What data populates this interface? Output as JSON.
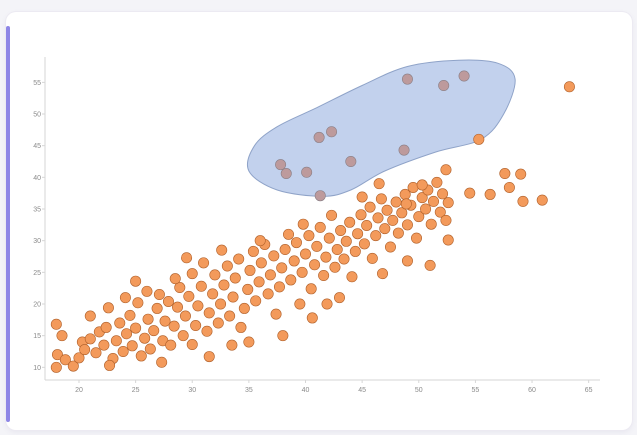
{
  "colors": {
    "point": "#f39a5b",
    "selected_point": "#bd9a9c",
    "lasso_fill": "#b7c9ea",
    "accent": "#8e86e6"
  },
  "chart_data": {
    "type": "scatter",
    "title": "",
    "xlabel": "",
    "ylabel": "",
    "xlim": [
      17,
      66
    ],
    "ylim": [
      8,
      59
    ],
    "grid": false,
    "x_ticks": [
      "20",
      "25",
      "30",
      "35",
      "40",
      "45",
      "50",
      "55",
      "60",
      "65"
    ],
    "y_ticks": [
      "10",
      "15",
      "20",
      "25",
      "30",
      "35",
      "40",
      "45",
      "50",
      "55"
    ],
    "selection_region": {
      "shape": "lasso",
      "polygon": [
        [
          37.5,
          38
        ],
        [
          41.5,
          37
        ],
        [
          44,
          38
        ],
        [
          47,
          41
        ],
        [
          51.5,
          44
        ],
        [
          55.5,
          46
        ],
        [
          57.5,
          50
        ],
        [
          58.5,
          55.5
        ],
        [
          57,
          58
        ],
        [
          53.5,
          58.5
        ],
        [
          49,
          57.5
        ],
        [
          45,
          54.5
        ],
        [
          41,
          51
        ],
        [
          37.5,
          48
        ],
        [
          35.5,
          45
        ],
        [
          35,
          41
        ]
      ],
      "points": [
        [
          37.8,
          42
        ],
        [
          38.3,
          40.6
        ],
        [
          40.1,
          40.8
        ],
        [
          41.2,
          46.3
        ],
        [
          42.3,
          47.2
        ],
        [
          41.3,
          37.1
        ],
        [
          44.0,
          42.5
        ],
        [
          48.7,
          44.3
        ],
        [
          49.0,
          55.5
        ],
        [
          52.2,
          54.5
        ],
        [
          54.0,
          56.0
        ]
      ]
    },
    "outliers": [
      [
        55.3,
        46.0
      ],
      [
        63.3,
        54.3
      ],
      [
        56.3,
        37.3
      ],
      [
        57.6,
        40.6
      ],
      [
        58.0,
        38.4
      ],
      [
        59.0,
        40.5
      ],
      [
        59.2,
        36.2
      ],
      [
        60.9,
        36.4
      ],
      [
        52.6,
        30.1
      ],
      [
        51.0,
        26.1
      ],
      [
        54.5,
        37.5
      ],
      [
        50.3,
        38.8
      ],
      [
        52.4,
        41.2
      ],
      [
        48.9,
        35.8
      ],
      [
        46.5,
        39.0
      ]
    ],
    "trend_points": [
      [
        18.0,
        10.0
      ],
      [
        18.0,
        16.8
      ],
      [
        18.1,
        12.0
      ],
      [
        18.5,
        15.0
      ],
      [
        18.8,
        11.2
      ],
      [
        19.5,
        10.2
      ],
      [
        20.0,
        11.5
      ],
      [
        20.3,
        14.0
      ],
      [
        20.5,
        12.8
      ],
      [
        21.0,
        14.5
      ],
      [
        21.0,
        18.1
      ],
      [
        21.5,
        12.3
      ],
      [
        21.8,
        15.6
      ],
      [
        22.2,
        13.5
      ],
      [
        22.4,
        16.3
      ],
      [
        22.6,
        19.4
      ],
      [
        23.0,
        11.4
      ],
      [
        23.3,
        14.2
      ],
      [
        23.6,
        17.0
      ],
      [
        23.9,
        12.5
      ],
      [
        24.2,
        15.3
      ],
      [
        24.5,
        18.2
      ],
      [
        24.7,
        13.4
      ],
      [
        25.0,
        16.2
      ],
      [
        25.2,
        20.2
      ],
      [
        25.5,
        11.8
      ],
      [
        25.8,
        14.6
      ],
      [
        26.1,
        17.6
      ],
      [
        26.3,
        12.9
      ],
      [
        26.6,
        15.8
      ],
      [
        26.9,
        19.3
      ],
      [
        27.1,
        21.5
      ],
      [
        27.4,
        14.2
      ],
      [
        27.6,
        17.3
      ],
      [
        27.9,
        20.4
      ],
      [
        28.1,
        13.5
      ],
      [
        28.4,
        16.5
      ],
      [
        28.7,
        19.5
      ],
      [
        28.9,
        22.6
      ],
      [
        29.2,
        15.0
      ],
      [
        29.4,
        18.1
      ],
      [
        29.7,
        21.2
      ],
      [
        30.0,
        24.8
      ],
      [
        30.0,
        13.6
      ],
      [
        30.3,
        16.6
      ],
      [
        30.5,
        19.7
      ],
      [
        30.8,
        22.8
      ],
      [
        31.0,
        26.5
      ],
      [
        31.3,
        15.7
      ],
      [
        31.5,
        18.6
      ],
      [
        31.8,
        21.6
      ],
      [
        32.0,
        24.6
      ],
      [
        32.3,
        17.0
      ],
      [
        32.5,
        20.0
      ],
      [
        32.8,
        23.0
      ],
      [
        33.1,
        26.0
      ],
      [
        33.3,
        18.1
      ],
      [
        33.6,
        21.1
      ],
      [
        33.8,
        24.1
      ],
      [
        34.1,
        27.1
      ],
      [
        34.3,
        16.3
      ],
      [
        34.6,
        19.3
      ],
      [
        34.9,
        22.3
      ],
      [
        35.1,
        25.3
      ],
      [
        35.4,
        28.3
      ],
      [
        35.6,
        20.5
      ],
      [
        35.9,
        23.5
      ],
      [
        36.1,
        26.5
      ],
      [
        36.4,
        29.4
      ],
      [
        36.7,
        21.6
      ],
      [
        36.9,
        24.6
      ],
      [
        37.2,
        27.6
      ],
      [
        37.4,
        18.4
      ],
      [
        37.7,
        22.7
      ],
      [
        37.9,
        25.7
      ],
      [
        38.2,
        28.6
      ],
      [
        38.5,
        31.0
      ],
      [
        38.7,
        23.8
      ],
      [
        39.0,
        26.8
      ],
      [
        39.2,
        29.7
      ],
      [
        39.5,
        20.0
      ],
      [
        39.7,
        25.0
      ],
      [
        40.0,
        27.9
      ],
      [
        40.3,
        30.8
      ],
      [
        40.5,
        22.4
      ],
      [
        40.8,
        26.2
      ],
      [
        41.0,
        29.1
      ],
      [
        41.3,
        32.1
      ],
      [
        41.6,
        24.5
      ],
      [
        41.8,
        27.4
      ],
      [
        42.1,
        30.4
      ],
      [
        42.3,
        34.0
      ],
      [
        42.6,
        25.8
      ],
      [
        42.8,
        28.6
      ],
      [
        43.1,
        31.6
      ],
      [
        43.4,
        27.1
      ],
      [
        43.6,
        29.9
      ],
      [
        43.9,
        32.9
      ],
      [
        44.1,
        24.3
      ],
      [
        44.4,
        28.3
      ],
      [
        44.6,
        31.1
      ],
      [
        44.9,
        34.1
      ],
      [
        45.2,
        29.5
      ],
      [
        45.4,
        32.4
      ],
      [
        45.7,
        35.3
      ],
      [
        45.9,
        27.2
      ],
      [
        46.2,
        30.8
      ],
      [
        46.4,
        33.6
      ],
      [
        46.7,
        36.6
      ],
      [
        47.0,
        31.9
      ],
      [
        47.2,
        34.8
      ],
      [
        47.5,
        29.0
      ],
      [
        47.7,
        33.2
      ],
      [
        48.0,
        36.1
      ],
      [
        48.2,
        31.2
      ],
      [
        48.5,
        34.4
      ],
      [
        48.8,
        37.3
      ],
      [
        49.0,
        32.5
      ],
      [
        49.3,
        35.6
      ],
      [
        49.5,
        38.4
      ],
      [
        49.8,
        30.4
      ],
      [
        50.0,
        33.8
      ],
      [
        50.3,
        36.8
      ],
      [
        50.6,
        35.0
      ],
      [
        50.8,
        38.0
      ],
      [
        51.1,
        32.6
      ],
      [
        51.3,
        36.2
      ],
      [
        51.6,
        39.2
      ],
      [
        51.9,
        34.5
      ],
      [
        52.1,
        37.4
      ],
      [
        52.4,
        33.2
      ],
      [
        52.6,
        36.0
      ],
      [
        25.0,
        23.6
      ],
      [
        26.0,
        22.0
      ],
      [
        27.3,
        10.8
      ],
      [
        28.5,
        24.0
      ],
      [
        29.5,
        27.3
      ],
      [
        31.5,
        11.7
      ],
      [
        32.6,
        28.5
      ],
      [
        33.5,
        13.5
      ],
      [
        36.0,
        30.0
      ],
      [
        38.0,
        15.0
      ],
      [
        39.8,
        32.6
      ],
      [
        40.6,
        17.8
      ],
      [
        43.0,
        21.0
      ],
      [
        45.0,
        36.9
      ],
      [
        46.8,
        24.8
      ],
      [
        49.0,
        26.8
      ],
      [
        24.1,
        21.0
      ],
      [
        22.7,
        10.3
      ],
      [
        35.0,
        14.0
      ],
      [
        41.9,
        20.0
      ]
    ]
  }
}
